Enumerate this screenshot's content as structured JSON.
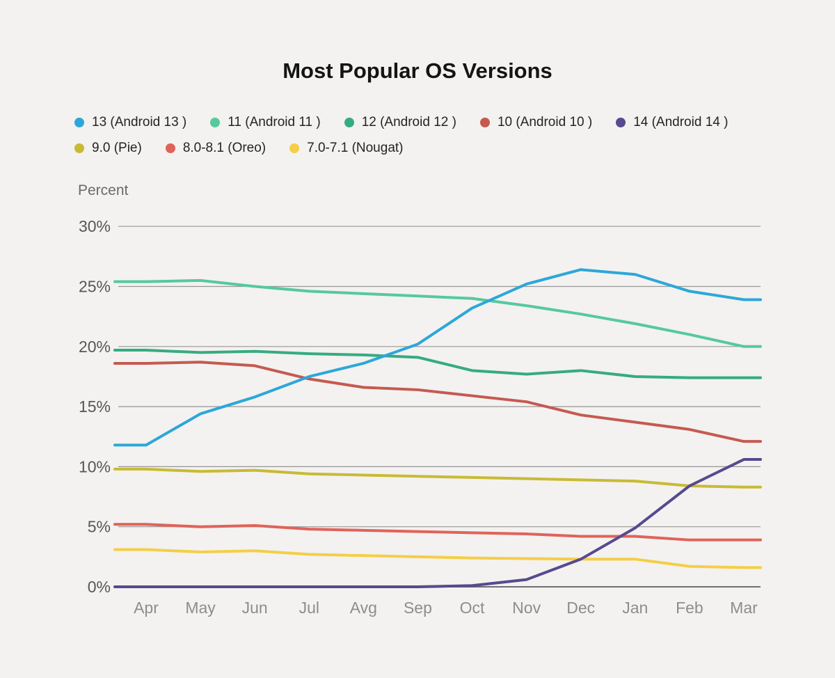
{
  "title": "Most Popular OS Versions",
  "chart_data": {
    "type": "line",
    "title": "Most Popular OS Versions",
    "ylabel": "Percent",
    "xlabel": "",
    "ylim": [
      0,
      30
    ],
    "ytick_step": 5,
    "ytick_labels": [
      "0%",
      "5%",
      "10%",
      "15%",
      "20%",
      "25%",
      "30%"
    ],
    "grid": "horizontal-only",
    "legend_position": "top-left-two-rows",
    "background_color": "#f3f2f0",
    "categories": [
      "Apr",
      "May",
      "Jun",
      "Jul",
      "Avg",
      "Sep",
      "Oct",
      "Nov",
      "Dec",
      "Jan",
      "Feb",
      "Mar"
    ],
    "series": [
      {
        "id": "android-13",
        "name": "13 (Android 13 )",
        "color": "#2da7d9",
        "values": [
          11.8,
          14.4,
          15.8,
          17.5,
          18.6,
          20.2,
          23.2,
          25.2,
          26.4,
          26.0,
          24.6,
          23.9
        ]
      },
      {
        "id": "android-11",
        "name": "11 (Android 11 )",
        "color": "#56c99e",
        "values": [
          25.4,
          25.5,
          25.0,
          24.6,
          24.4,
          24.2,
          24.0,
          23.4,
          22.7,
          21.9,
          21.0,
          20.0
        ]
      },
      {
        "id": "android-12",
        "name": "12 (Android 12 )",
        "color": "#36ab81",
        "values": [
          19.7,
          19.5,
          19.6,
          19.4,
          19.3,
          19.1,
          18.0,
          17.7,
          18.0,
          17.5,
          17.4,
          17.4
        ]
      },
      {
        "id": "android-10",
        "name": "10 (Android 10 )",
        "color": "#c55a51",
        "values": [
          18.6,
          18.7,
          18.4,
          17.3,
          16.6,
          16.4,
          15.9,
          15.4,
          14.3,
          13.7,
          13.1,
          12.1
        ]
      },
      {
        "id": "android-14",
        "name": "14 (Android 14 )",
        "color": "#574a8e",
        "values": [
          0,
          0,
          0,
          0,
          0,
          0,
          0.1,
          0.6,
          2.3,
          4.9,
          8.4,
          10.6
        ]
      },
      {
        "id": "pie",
        "name": "9.0 (Pie)",
        "color": "#c9ba35",
        "values": [
          9.8,
          9.6,
          9.7,
          9.4,
          9.3,
          9.2,
          9.1,
          9.0,
          8.9,
          8.8,
          8.4,
          8.3
        ]
      },
      {
        "id": "oreo",
        "name": "8.0-8.1 (Oreo)",
        "color": "#e0635a",
        "values": [
          5.2,
          5.0,
          5.1,
          4.8,
          4.7,
          4.6,
          4.5,
          4.4,
          4.2,
          4.2,
          3.9,
          3.9
        ]
      },
      {
        "id": "nougat",
        "name": "7.0-7.1 (Nougat)",
        "color": "#f5ce47",
        "values": [
          3.1,
          2.9,
          3.0,
          2.7,
          2.6,
          2.5,
          2.4,
          2.35,
          2.3,
          2.3,
          1.7,
          1.6
        ]
      }
    ],
    "legend_rows": [
      [
        0,
        1,
        2,
        3,
        4
      ],
      [
        5,
        6,
        7
      ]
    ]
  }
}
